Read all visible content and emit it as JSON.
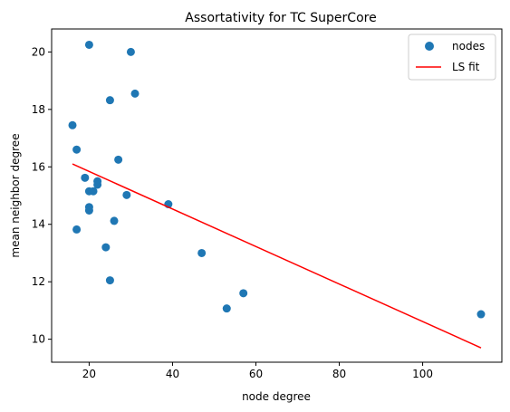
{
  "chart_data": {
    "type": "scatter",
    "title": "Assortativity for TC SuperCore",
    "xlabel": "node degree",
    "ylabel": "mean neighbor degree",
    "xlim": [
      11,
      119
    ],
    "ylim": [
      9.2,
      20.8
    ],
    "xticks": [
      20,
      40,
      60,
      80,
      100
    ],
    "yticks": [
      10,
      12,
      14,
      16,
      18,
      20
    ],
    "grid": false,
    "legend_position": "top-right",
    "series": [
      {
        "name": "nodes",
        "kind": "scatter",
        "color": "#1f77b4",
        "points": [
          [
            16,
            17.45
          ],
          [
            17,
            16.6
          ],
          [
            17,
            13.82
          ],
          [
            19,
            15.62
          ],
          [
            20,
            20.25
          ],
          [
            20,
            15.15
          ],
          [
            20,
            14.6
          ],
          [
            20,
            14.48
          ],
          [
            21,
            15.15
          ],
          [
            22,
            15.5
          ],
          [
            22,
            15.38
          ],
          [
            24,
            13.2
          ],
          [
            25,
            18.32
          ],
          [
            25,
            12.05
          ],
          [
            26,
            14.12
          ],
          [
            27,
            16.25
          ],
          [
            29,
            15.02
          ],
          [
            30,
            20.0
          ],
          [
            31,
            18.55
          ],
          [
            39,
            14.7
          ],
          [
            47,
            13.0
          ],
          [
            53,
            11.07
          ],
          [
            57,
            11.6
          ],
          [
            114,
            10.87
          ]
        ]
      },
      {
        "name": "LS fit",
        "kind": "line",
        "color": "#ff0000",
        "points": [
          [
            16,
            16.1
          ],
          [
            114,
            9.7
          ]
        ]
      }
    ]
  }
}
